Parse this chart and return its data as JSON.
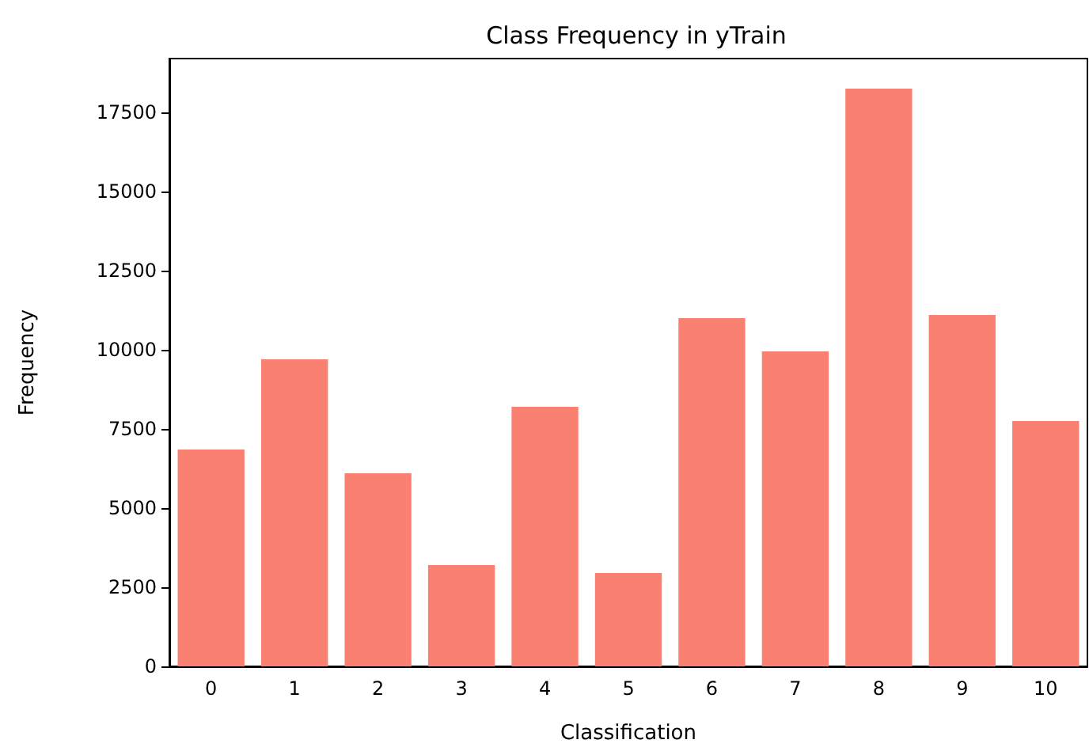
{
  "chart_data": {
    "type": "bar",
    "title": "Class Frequency in yTrain",
    "xlabel": "Classification",
    "ylabel": "Frequency",
    "categories": [
      "0",
      "1",
      "2",
      "3",
      "4",
      "5",
      "6",
      "7",
      "8",
      "9",
      "10"
    ],
    "values": [
      6850,
      9700,
      6100,
      3200,
      8200,
      2950,
      11000,
      9950,
      18250,
      11100,
      7750
    ],
    "color": "#fa8072",
    "ylim": [
      0,
      19200
    ],
    "yticks": [
      0,
      2500,
      5000,
      7500,
      10000,
      12500,
      15000,
      17500
    ],
    "grid": false
  }
}
